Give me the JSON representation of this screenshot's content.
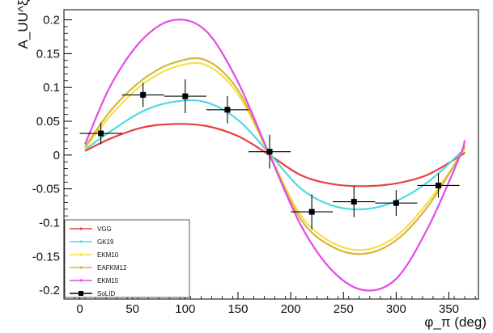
{
  "chart_data": {
    "type": "line",
    "title": "",
    "xlabel": "φ_π (deg)",
    "ylabel": "A_UU^ξ",
    "xlim": [
      -15,
      378
    ],
    "ylim": [
      -0.213,
      0.215
    ],
    "x_ticks": [
      "0",
      "50",
      "100",
      "150",
      "200",
      "250",
      "300",
      "350"
    ],
    "y_ticks": [
      "0.2",
      "0.15",
      "0.1",
      "0.05",
      "0",
      "-0.05",
      "-0.1",
      "-0.15",
      "-0.2"
    ],
    "grid": false,
    "legend_position": "bottom-left",
    "series": [
      {
        "name": "VGG",
        "color": "#e8413c",
        "kind": "curve",
        "x": [
          5,
          30,
          60,
          90,
          120,
          150,
          180,
          210,
          240,
          270,
          300,
          330,
          360,
          365
        ],
        "y": [
          0.006,
          0.025,
          0.041,
          0.046,
          0.043,
          0.028,
          0.0,
          -0.03,
          -0.043,
          -0.046,
          -0.042,
          -0.029,
          -0.002,
          0.004
        ]
      },
      {
        "name": "GK19",
        "color": "#4fd9e0",
        "kind": "curve",
        "x": [
          5,
          30,
          60,
          90,
          120,
          150,
          180,
          210,
          240,
          270,
          300,
          330,
          360,
          365
        ],
        "y": [
          0.008,
          0.036,
          0.065,
          0.079,
          0.078,
          0.052,
          0.002,
          -0.05,
          -0.075,
          -0.08,
          -0.068,
          -0.04,
          0.002,
          0.012
        ]
      },
      {
        "name": "EKM10",
        "color": "#f5e04a",
        "kind": "curve",
        "x": [
          5,
          30,
          60,
          90,
          120,
          150,
          180,
          210,
          240,
          270,
          300,
          330,
          360,
          365
        ],
        "y": [
          0.01,
          0.06,
          0.105,
          0.13,
          0.133,
          0.09,
          0.0,
          -0.09,
          -0.13,
          -0.14,
          -0.12,
          -0.07,
          -0.003,
          0.012
        ]
      },
      {
        "name": "EAFKM12",
        "color": "#d9b53a",
        "kind": "curve",
        "x": [
          5,
          30,
          60,
          90,
          120,
          150,
          180,
          210,
          240,
          270,
          300,
          330,
          360,
          365
        ],
        "y": [
          0.012,
          0.067,
          0.112,
          0.137,
          0.14,
          0.096,
          0.0,
          -0.096,
          -0.136,
          -0.146,
          -0.126,
          -0.076,
          -0.002,
          0.014
        ]
      },
      {
        "name": "EKM15",
        "color": "#e44ae6",
        "kind": "curve",
        "x": [
          5,
          30,
          60,
          90,
          120,
          150,
          180,
          210,
          240,
          270,
          300,
          330,
          360,
          365
        ],
        "y": [
          0.016,
          0.105,
          0.172,
          0.2,
          0.183,
          0.108,
          0.0,
          -0.105,
          -0.172,
          -0.2,
          -0.183,
          -0.108,
          -0.003,
          0.022
        ]
      },
      {
        "name": "SoLID",
        "color": "#000000",
        "kind": "points",
        "x": [
          20,
          60,
          100,
          140,
          180,
          220,
          260,
          300,
          340
        ],
        "y": [
          0.032,
          0.089,
          0.087,
          0.067,
          0.005,
          -0.084,
          -0.069,
          -0.071,
          -0.045
        ],
        "yerr": [
          0.016,
          0.018,
          0.025,
          0.02,
          0.025,
          0.026,
          0.023,
          0.019,
          0.018
        ],
        "xerr": [
          20,
          20,
          20,
          20,
          20,
          20,
          20,
          20,
          20
        ]
      }
    ]
  }
}
